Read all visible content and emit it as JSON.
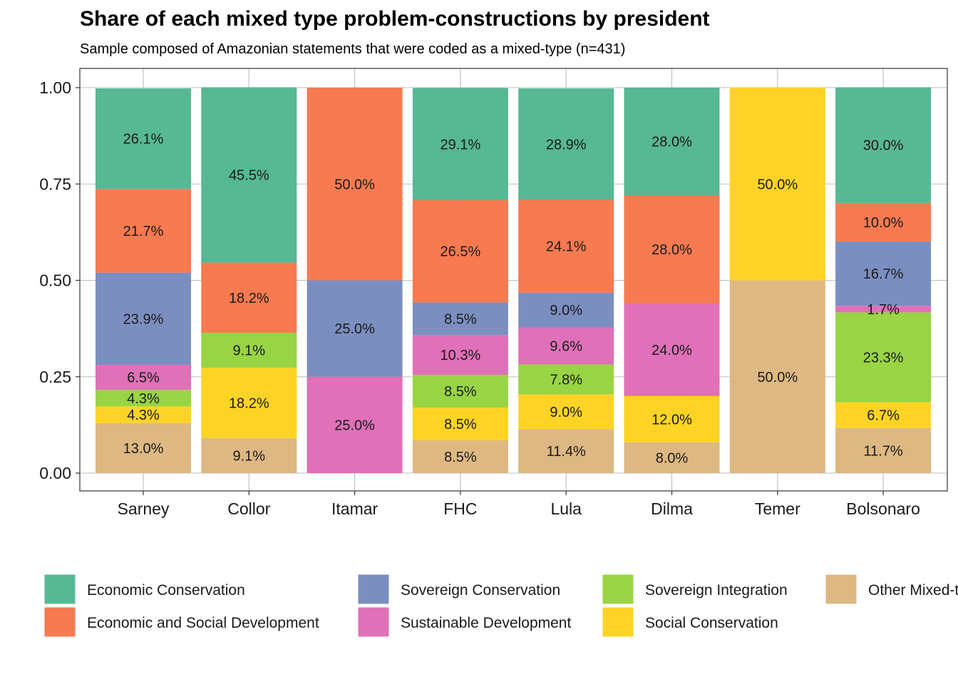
{
  "chart_data": {
    "type": "bar",
    "stacked": true,
    "title": "Share of each mixed type problem-constructions by president",
    "subtitle": "Sample composed of Amazonian statements that were coded as a mixed-type (n=431)",
    "xlabel": "",
    "ylabel": "",
    "ylim": [
      0,
      1
    ],
    "yticks": [
      "0.00",
      "0.25",
      "0.50",
      "0.75",
      "1.00"
    ],
    "grid": true,
    "legend_position": "bottom",
    "categories": [
      "Sarney",
      "Collor",
      "Itamar",
      "FHC",
      "Lula",
      "Dilma",
      "Temer",
      "Bolsonaro"
    ],
    "series": [
      {
        "name": "Economic Conservation",
        "color": "#57b894",
        "values": [
          0.261,
          0.455,
          0,
          0.291,
          0.289,
          0.28,
          0,
          0.3
        ],
        "labels": [
          "26.1%",
          "45.5%",
          "",
          "29.1%",
          "28.9%",
          "28.0%",
          "",
          "30.0%"
        ]
      },
      {
        "name": "Economic and Social Development",
        "color": "#f77a51",
        "values": [
          0.217,
          0.182,
          0.5,
          0.265,
          0.241,
          0.28,
          0,
          0.1
        ],
        "labels": [
          "21.7%",
          "18.2%",
          "50.0%",
          "26.5%",
          "24.1%",
          "28.0%",
          "",
          "10.0%"
        ]
      },
      {
        "name": "Sovereign Conservation",
        "color": "#7b8ec0",
        "values": [
          0.239,
          0,
          0.25,
          0.085,
          0.09,
          0,
          0,
          0.167
        ],
        "labels": [
          "23.9%",
          "",
          "25.0%",
          "8.5%",
          "9.0%",
          "",
          "",
          "16.7%"
        ]
      },
      {
        "name": "Sustainable Development",
        "color": "#e070b8",
        "values": [
          0.065,
          0,
          0.25,
          0.103,
          0.096,
          0.24,
          0,
          0.017
        ],
        "labels": [
          "6.5%",
          "",
          "25.0%",
          "10.3%",
          "9.6%",
          "24.0%",
          "",
          "1.7%"
        ]
      },
      {
        "name": "Sovereign Integration",
        "color": "#98d444",
        "values": [
          0.043,
          0.091,
          0,
          0.085,
          0.078,
          0,
          0,
          0.233
        ],
        "labels": [
          "4.3%",
          "9.1%",
          "",
          "8.5%",
          "7.8%",
          "",
          "",
          "23.3%"
        ]
      },
      {
        "name": "Social Conservation",
        "color": "#fdd425",
        "values": [
          0.043,
          0.182,
          0,
          0.085,
          0.09,
          0.12,
          0.5,
          0.067
        ],
        "labels": [
          "4.3%",
          "18.2%",
          "",
          "8.5%",
          "9.0%",
          "12.0%",
          "50.0%",
          "6.7%"
        ]
      },
      {
        "name": "Other Mixed-type",
        "color": "#ddb882",
        "values": [
          0.13,
          0.091,
          0,
          0.085,
          0.114,
          0.08,
          0.5,
          0.117
        ],
        "labels": [
          "13.0%",
          "9.1%",
          "",
          "8.5%",
          "11.4%",
          "8.0%",
          "50.0%",
          "11.7%"
        ]
      }
    ],
    "stack_order": [
      "Other Mixed-type",
      "Social Conservation",
      "Sovereign Integration",
      "Sustainable Development",
      "Sovereign Conservation",
      "Economic and Social Development",
      "Economic Conservation"
    ],
    "legend_order": [
      "Economic Conservation",
      "Economic and Social Development",
      "Sovereign Conservation",
      "Sustainable Development",
      "Sovereign Integration",
      "Social Conservation",
      "Other Mixed-type"
    ],
    "legend_visible_labels": [
      "Economic Conservation",
      "Economic and Social Development",
      "Sovereign Conservation",
      "Sustainable Development",
      "Sovereign Integration",
      "Social Conservation",
      "Other Mixed-t"
    ]
  }
}
